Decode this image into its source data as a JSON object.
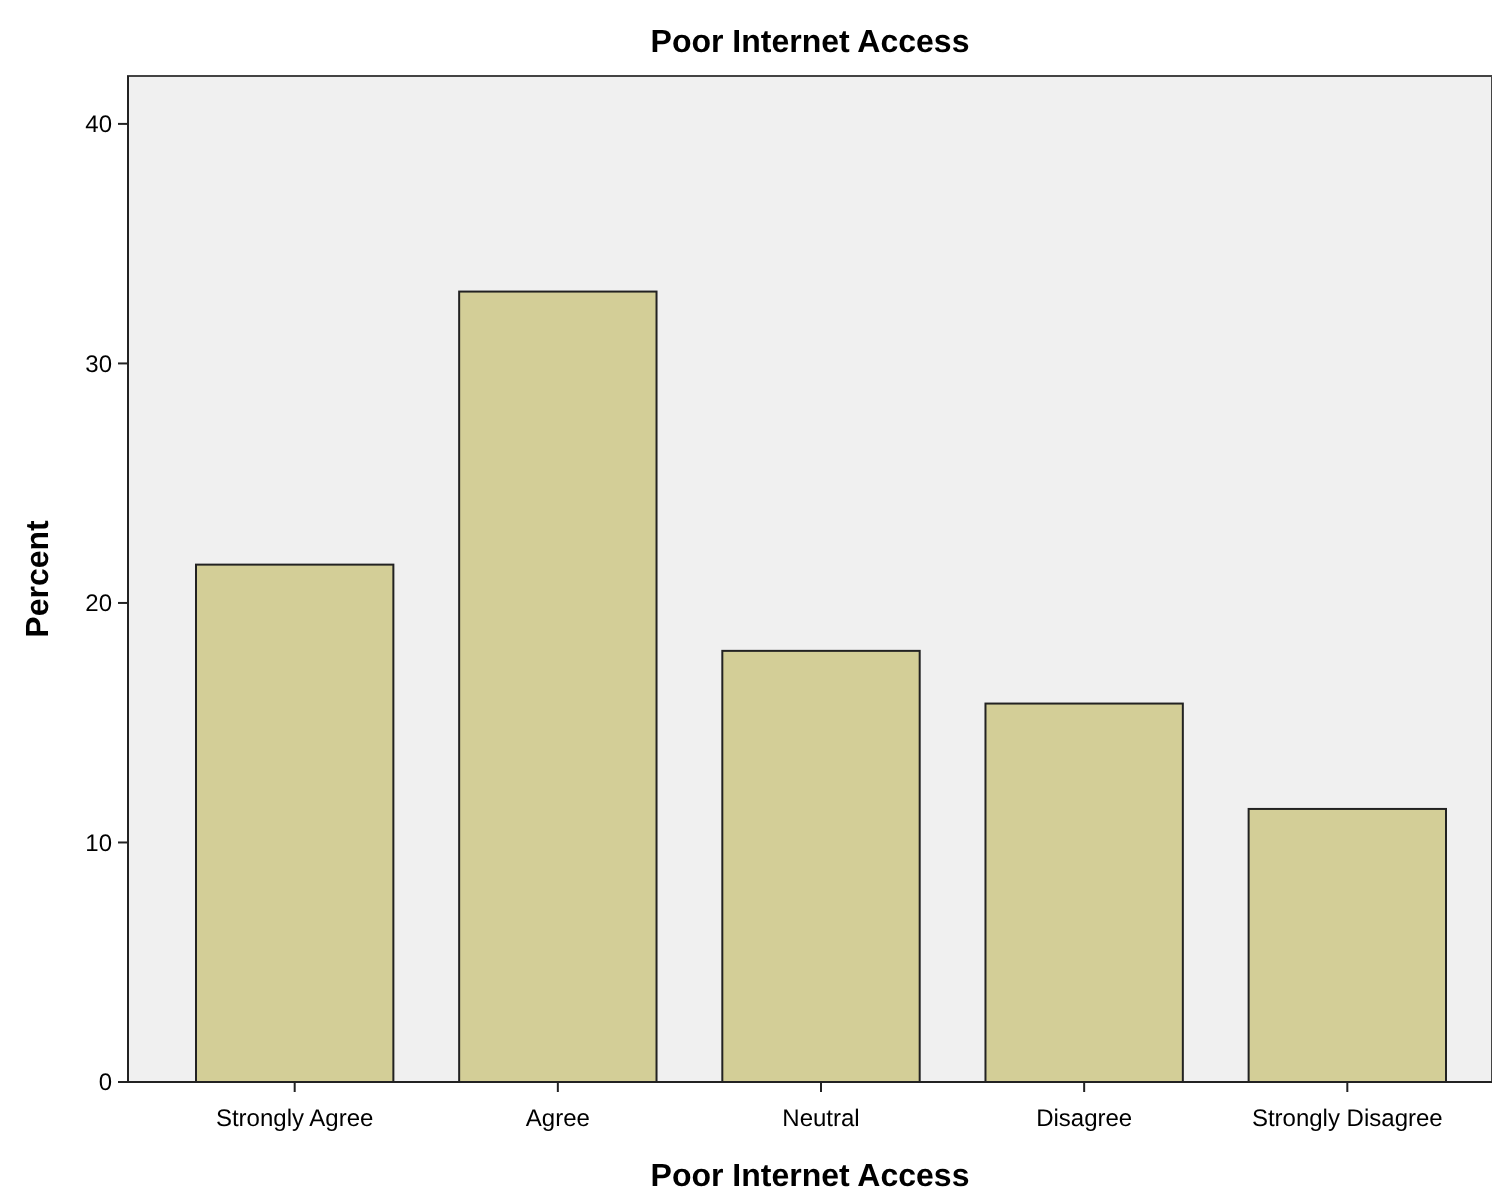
{
  "chart_data": {
    "type": "bar",
    "title": "Poor Internet Access",
    "xlabel": "Poor Internet Access",
    "ylabel": "Percent",
    "categories": [
      "Strongly Agree",
      "Agree",
      "Neutral",
      "Disagree",
      "Strongly Disagree"
    ],
    "values": [
      21.6,
      33.0,
      18.0,
      15.8,
      11.4
    ],
    "color": "#d3ce97",
    "ylim": [
      0,
      42
    ],
    "yticks": [
      0,
      10,
      20,
      30,
      40
    ],
    "grid": false
  }
}
